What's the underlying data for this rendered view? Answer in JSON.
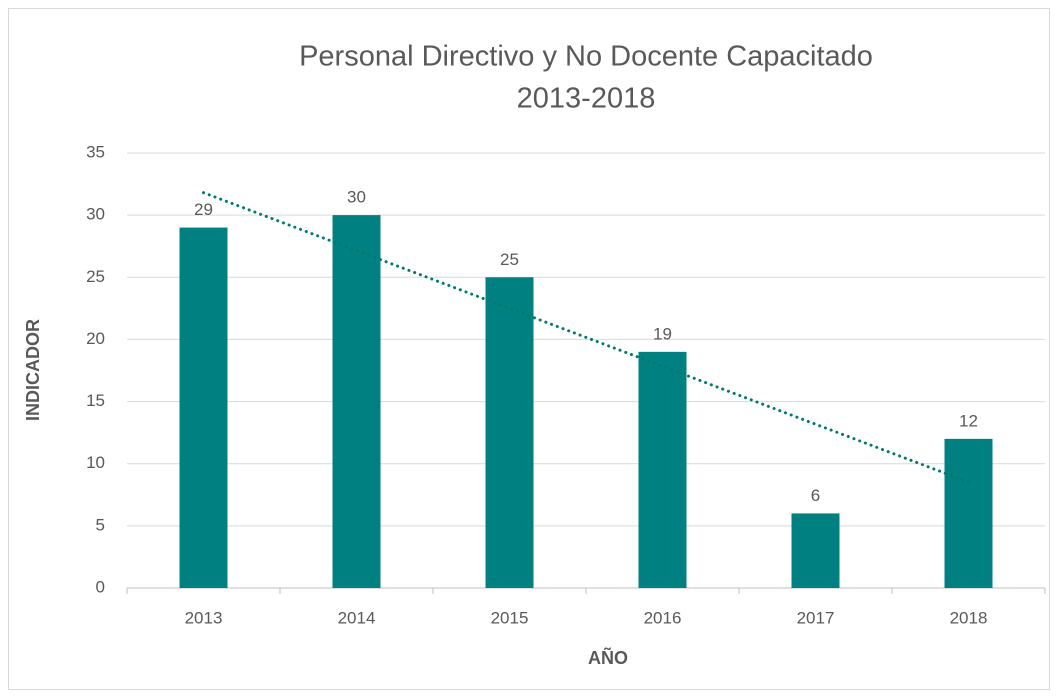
{
  "chart_data": {
    "type": "bar",
    "title": [
      "Personal Directivo y No Docente Capacitado",
      "2013-2018"
    ],
    "x_label": "AÑO",
    "y_label": "INDICADOR",
    "categories": [
      "2013",
      "2014",
      "2015",
      "2016",
      "2017",
      "2018"
    ],
    "values": [
      29,
      30,
      25,
      19,
      6,
      12
    ],
    "color": "#008080",
    "ylim": [
      0,
      35
    ],
    "yticks": [
      0,
      5,
      10,
      15,
      20,
      25,
      30,
      35
    ],
    "grid": true,
    "data_labels": true,
    "trendline": "linear",
    "trendline_color": "#007a6e"
  }
}
